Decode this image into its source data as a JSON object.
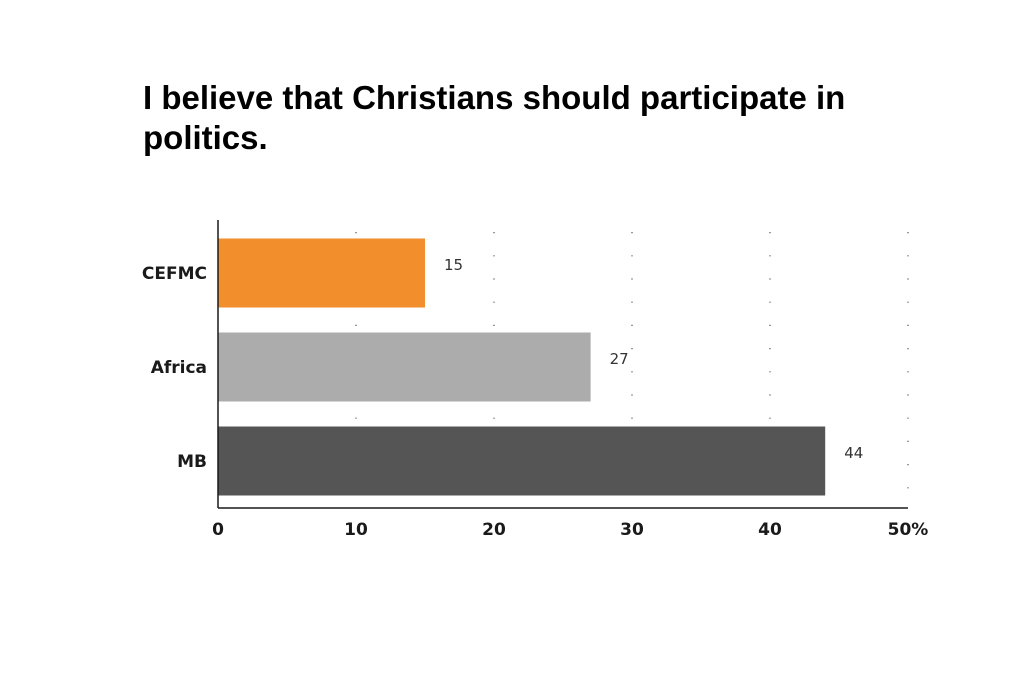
{
  "title": "I believe that Christians should participate in politics.",
  "chart_data": {
    "type": "bar",
    "orientation": "horizontal",
    "title": "I believe that Christians should participate in politics.",
    "categories": [
      "CEFMC",
      "Africa",
      "MB"
    ],
    "values": [
      15,
      27,
      44
    ],
    "data_labels": [
      "15",
      "27",
      "44"
    ],
    "colors": [
      "#f28e2b",
      "#acacac",
      "#555555"
    ],
    "xlim": [
      0,
      50
    ],
    "x_ticks": [
      0,
      10,
      20,
      30,
      40,
      50
    ],
    "x_tick_labels": [
      "0",
      "10",
      "20",
      "30",
      "40",
      "50%"
    ],
    "xlabel": "",
    "ylabel": "",
    "grid": "vertical dotted",
    "legend": "none"
  }
}
